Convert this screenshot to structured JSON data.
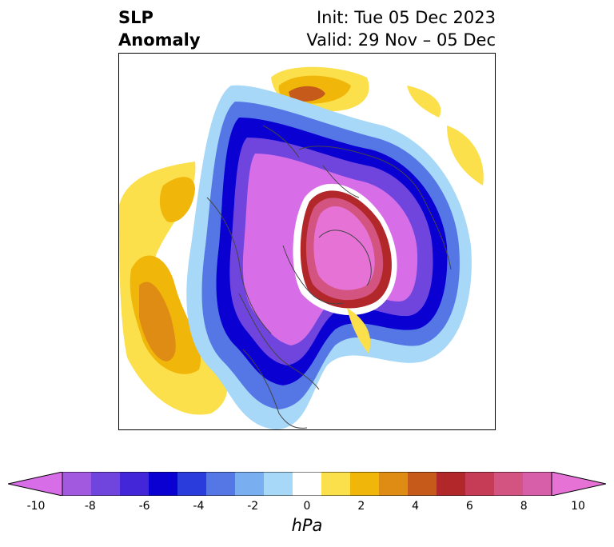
{
  "title": {
    "left_line1": "SLP",
    "left_line2": "Anomaly",
    "right_line1": "Init: Tue 05 Dec 2023",
    "right_line2": "Valid: 29 Nov – 05 Dec"
  },
  "colorbar": {
    "units": "hPa",
    "ticks": [
      "-10",
      "-8",
      "-6",
      "-4",
      "-2",
      "0",
      "2",
      "4",
      "6",
      "8",
      "10"
    ],
    "colors": [
      "#d76ee8",
      "#a259e0",
      "#6f45dd",
      "#4326d8",
      "#0a00d2",
      "#2a3ddc",
      "#5577e6",
      "#79aef0",
      "#a8d8f8",
      "#ffffff",
      "#fbdf4b",
      "#f1b60a",
      "#de8c13",
      "#c65a1a",
      "#b2282a",
      "#c63b55",
      "#d35480",
      "#d75ea8",
      "#e672d6"
    ],
    "extend": "both"
  },
  "map": {
    "projection": "north-polar-stereographic"
  }
}
